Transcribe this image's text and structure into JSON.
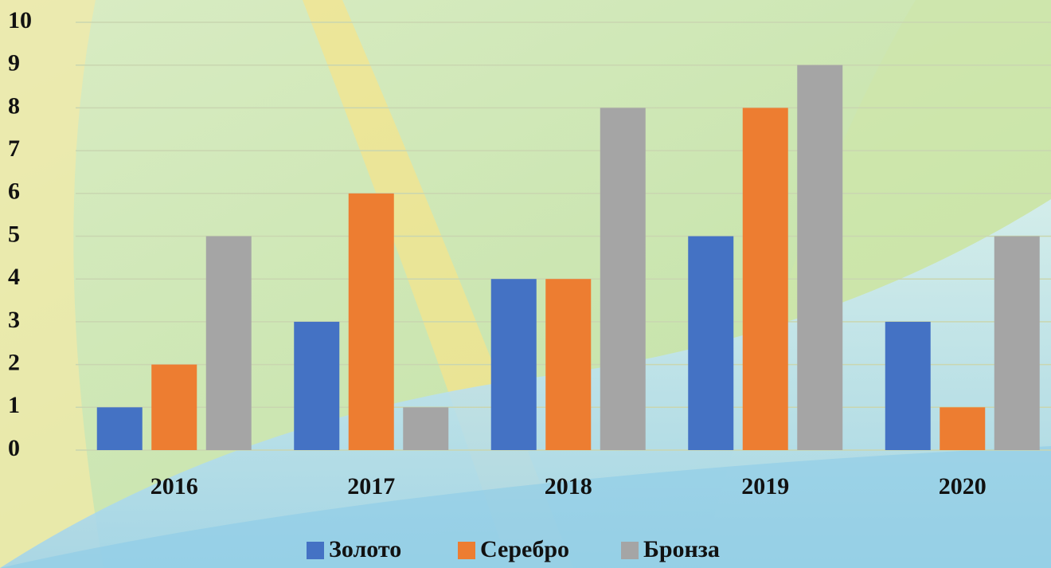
{
  "chart_data": {
    "type": "bar",
    "categories": [
      "2016",
      "2017",
      "2018",
      "2019",
      "2020"
    ],
    "series": [
      {
        "name": "Золото",
        "color": "#4472c4",
        "values": [
          1,
          3,
          4,
          5,
          3
        ]
      },
      {
        "name": "Серебро",
        "color": "#ed7d31",
        "values": [
          2,
          6,
          4,
          8,
          1
        ]
      },
      {
        "name": "Бронза",
        "color": "#a5a5a5",
        "values": [
          5,
          1,
          8,
          9,
          5
        ]
      }
    ],
    "ylim": [
      0,
      10
    ],
    "yticks": [
      0,
      1,
      2,
      3,
      4,
      5,
      6,
      7,
      8,
      9,
      10
    ],
    "grid": true,
    "legend": "bottom"
  }
}
